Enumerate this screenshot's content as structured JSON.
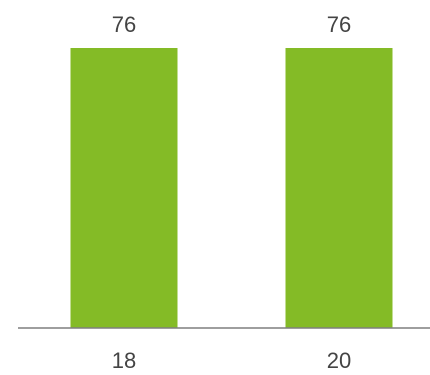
{
  "chart_data": {
    "type": "bar",
    "categories": [
      "18",
      "20"
    ],
    "values": [
      76,
      76
    ],
    "data_labels": [
      "76",
      "76"
    ],
    "title": "",
    "xlabel": "",
    "ylabel": "",
    "ylim": [
      0,
      76
    ],
    "grid": false,
    "legend": "none",
    "colors": {
      "bar": "#84bb26",
      "axis": "#7f7f7f",
      "text": "#444444"
    }
  }
}
